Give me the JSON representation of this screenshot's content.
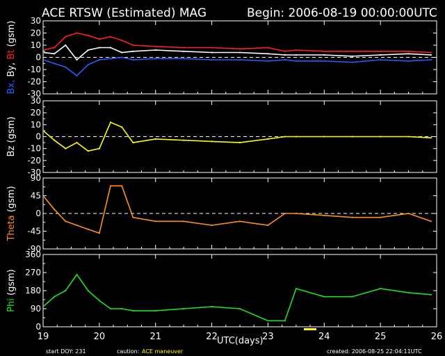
{
  "header": {
    "title": "ACE RTSW (Estimated) MAG",
    "begin": "Begin: 2006-08-19 00:00:00UTC"
  },
  "footer": {
    "start_doy": "start DOY:  231",
    "caution_label": "caution:",
    "caution_text": "ACE maneuver",
    "created": "created: 2006-08-25 22:04:11UTC",
    "xlabel": "UTC(days)"
  },
  "colors": {
    "bt": "#ff2020",
    "by": "#ffffff",
    "bx": "#2060ff",
    "bz": "#ffff00",
    "theta": "#ff9020",
    "phi": "#20e020",
    "caution": "#ffff00",
    "frame": "#ffffff",
    "background": "#000000"
  },
  "chart_data": [
    {
      "type": "line",
      "panel": "B components",
      "ylabel": [
        {
          "text": "Bx,",
          "color": "#2060ff"
        },
        {
          "text": " By,",
          "color": "#ffffff"
        },
        {
          "text": " Bt",
          "color": "#ff2020"
        },
        {
          "text": " (gsm)",
          "color": "#ffffff"
        }
      ],
      "ylim": [
        -30,
        30
      ],
      "yticks": [
        30,
        20,
        10,
        0,
        -10,
        -20,
        -30
      ],
      "xlim": [
        19,
        26
      ],
      "series": [
        {
          "name": "Bt",
          "color": "#ff2020",
          "x": [
            19.0,
            19.2,
            19.4,
            19.6,
            19.8,
            20.0,
            20.2,
            20.4,
            20.6,
            21.0,
            21.5,
            22.0,
            22.5,
            23.0,
            23.3,
            23.5,
            24.0,
            24.5,
            25.0,
            25.5,
            25.9
          ],
          "y": [
            6,
            8,
            17,
            20,
            18,
            15,
            17,
            14,
            10,
            9,
            8,
            8,
            7,
            8,
            5,
            6,
            5,
            5,
            5,
            5,
            4
          ]
        },
        {
          "name": "By",
          "color": "#ffffff",
          "x": [
            19.0,
            19.2,
            19.4,
            19.6,
            19.8,
            20.0,
            20.2,
            20.4,
            20.6,
            21.0,
            21.5,
            22.0,
            22.5,
            23.0,
            23.3,
            23.5,
            24.0,
            24.5,
            25.0,
            25.5,
            25.9
          ],
          "y": [
            4,
            3,
            10,
            -2,
            6,
            8,
            8,
            4,
            5,
            6,
            5,
            4,
            4,
            3,
            2,
            2,
            2,
            1,
            2,
            3,
            2
          ]
        },
        {
          "name": "Bx",
          "color": "#2060ff",
          "x": [
            19.0,
            19.2,
            19.4,
            19.6,
            19.8,
            20.0,
            20.2,
            20.4,
            20.6,
            21.0,
            21.5,
            22.0,
            22.5,
            23.0,
            23.3,
            23.5,
            24.0,
            24.5,
            25.0,
            25.5,
            25.9
          ],
          "y": [
            -2,
            -5,
            -8,
            -15,
            -6,
            -2,
            -1,
            0,
            -2,
            -1,
            -1,
            -2,
            -2,
            -3,
            -2,
            -3,
            -3,
            -4,
            -2,
            -3,
            -2
          ]
        }
      ]
    },
    {
      "type": "line",
      "panel": "Bz",
      "ylabel": [
        {
          "text": "Bz  (gsm)",
          "color": "#ffffff"
        }
      ],
      "ylim": [
        -30,
        30
      ],
      "yticks": [
        30,
        20,
        10,
        0,
        -10,
        -20,
        -30
      ],
      "xlim": [
        19,
        26
      ],
      "series": [
        {
          "name": "Bz",
          "color": "#ffff00",
          "x": [
            19.0,
            19.2,
            19.4,
            19.6,
            19.8,
            20.0,
            20.2,
            20.4,
            20.6,
            21.0,
            21.5,
            22.0,
            22.5,
            23.0,
            23.3,
            23.5,
            24.0,
            24.5,
            25.0,
            25.5,
            25.9
          ],
          "y": [
            5,
            -3,
            -10,
            -5,
            -12,
            -10,
            12,
            8,
            -5,
            -2,
            -3,
            -4,
            -5,
            -2,
            0,
            0,
            0,
            0,
            0,
            0,
            -1
          ]
        }
      ]
    },
    {
      "type": "line",
      "panel": "Theta",
      "ylabel": [
        {
          "text": "Theta",
          "color": "#ff9020"
        },
        {
          "text": "  (gsm)",
          "color": "#ffffff"
        }
      ],
      "ylim": [
        -90,
        90
      ],
      "yticks": [
        90,
        45,
        0,
        -45,
        -90
      ],
      "xlim": [
        19,
        26
      ],
      "series": [
        {
          "name": "Theta",
          "color": "#ff9020",
          "x": [
            19.0,
            19.2,
            19.4,
            19.6,
            19.8,
            20.0,
            20.2,
            20.4,
            20.6,
            21.0,
            21.5,
            22.0,
            22.5,
            23.0,
            23.3,
            23.5,
            24.0,
            24.5,
            25.0,
            25.5,
            25.9
          ],
          "y": [
            45,
            10,
            -20,
            -30,
            -40,
            -50,
            70,
            70,
            -10,
            -20,
            -20,
            -30,
            -20,
            -30,
            0,
            0,
            -5,
            -10,
            -10,
            0,
            -20
          ]
        }
      ]
    },
    {
      "type": "line",
      "panel": "Phi",
      "ylabel": [
        {
          "text": "Phi",
          "color": "#20e020"
        },
        {
          "text": "  (gsm)",
          "color": "#ffffff"
        }
      ],
      "ylim": [
        0,
        360
      ],
      "yticks": [
        360,
        270,
        180,
        90,
        0
      ],
      "xlim": [
        19,
        26
      ],
      "xticks": [
        19,
        20,
        21,
        22,
        23,
        24,
        25,
        26
      ],
      "series": [
        {
          "name": "Phi",
          "color": "#20e020",
          "x": [
            19.0,
            19.2,
            19.4,
            19.6,
            19.8,
            20.0,
            20.2,
            20.4,
            20.6,
            21.0,
            21.5,
            22.0,
            22.5,
            23.0,
            23.3,
            23.5,
            24.0,
            24.5,
            25.0,
            25.5,
            25.9
          ],
          "y": [
            100,
            150,
            180,
            260,
            180,
            130,
            90,
            90,
            80,
            80,
            90,
            100,
            90,
            30,
            30,
            190,
            150,
            150,
            190,
            170,
            160
          ]
        }
      ]
    }
  ]
}
